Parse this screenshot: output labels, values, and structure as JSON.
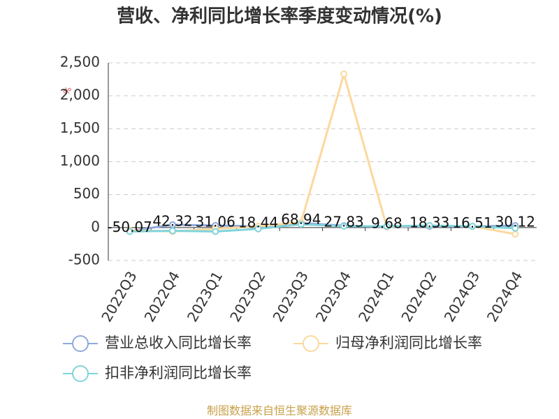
{
  "chart_data": {
    "type": "line",
    "title": "营收、净利同比增长率季度变动情况(%)",
    "y_axis_label": "%",
    "source": "制图数据来自恒生聚源数据库",
    "categories": [
      "2022Q3",
      "2022Q4",
      "2023Q1",
      "2023Q2",
      "2023Q3",
      "2023Q4",
      "2024Q1",
      "2024Q2",
      "2024Q3",
      "2024Q4"
    ],
    "series": [
      {
        "name": "营业总收入同比增长率",
        "color": "#8eaadb",
        "values": [
          -50.07,
          42.32,
          31.06,
          18.44,
          68.94,
          27.83,
          9.68,
          18.33,
          16.51,
          30.12
        ],
        "show_labels": true
      },
      {
        "name": "归母净利润同比增长率",
        "color": "#fcd89d",
        "values": [
          -40,
          -60,
          -20,
          20,
          80,
          2330,
          10,
          30,
          20,
          -100
        ]
      },
      {
        "name": "扣非净利润同比增长率",
        "color": "#80d4dc",
        "values": [
          -60,
          -50,
          -60,
          -20,
          50,
          20,
          20,
          30,
          20,
          -10
        ]
      }
    ],
    "ylim": [
      -500,
      2500
    ],
    "yticks": [
      -500,
      0,
      500,
      {
        "value": 1000,
        "label": "1,000"
      },
      {
        "value": 1500,
        "label": "1,500"
      },
      {
        "value": 2000,
        "label": "2,000"
      },
      {
        "value": 2500,
        "label": "2,500"
      }
    ],
    "grid": true
  }
}
